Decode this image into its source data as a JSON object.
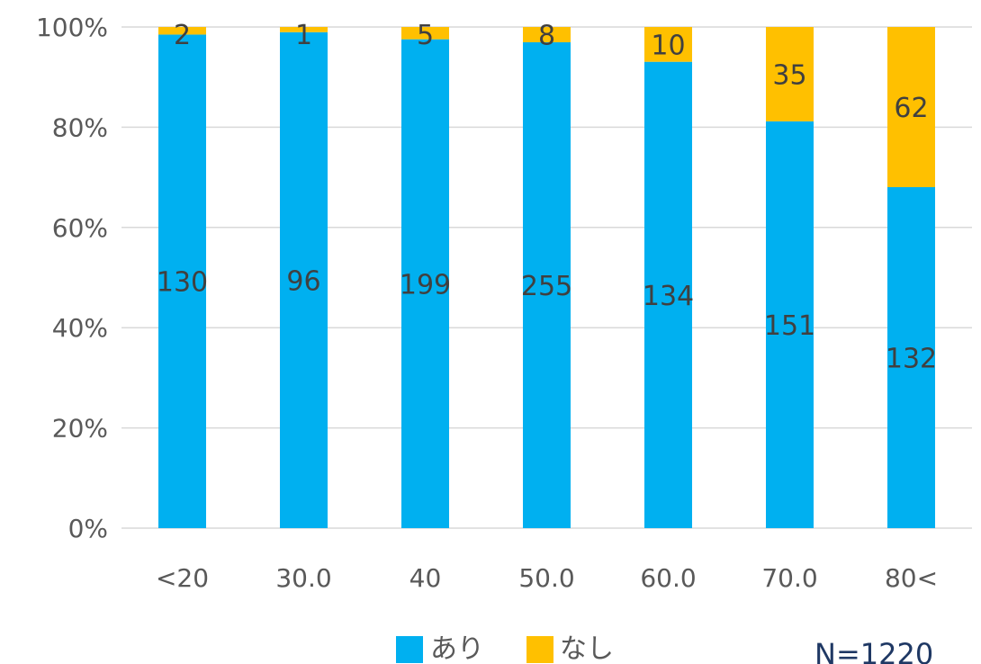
{
  "chart_data": {
    "type": "bar",
    "stacked": "percent",
    "categories": [
      "<20",
      "30.0",
      "40",
      "50.0",
      "60.0",
      "70.0",
      "80<"
    ],
    "series": [
      {
        "name": "あり",
        "values": [
          130,
          96,
          199,
          255,
          134,
          151,
          132
        ],
        "color": "#00B0F0"
      },
      {
        "name": "なし",
        "values": [
          2,
          1,
          5,
          8,
          10,
          35,
          62
        ],
        "color": "#FFC000"
      }
    ],
    "yticks": [
      "0%",
      "20%",
      "40%",
      "60%",
      "80%",
      "100%"
    ],
    "ylim": [
      0,
      100
    ],
    "grid": true,
    "legend": "bottom",
    "note": "N=1220"
  }
}
